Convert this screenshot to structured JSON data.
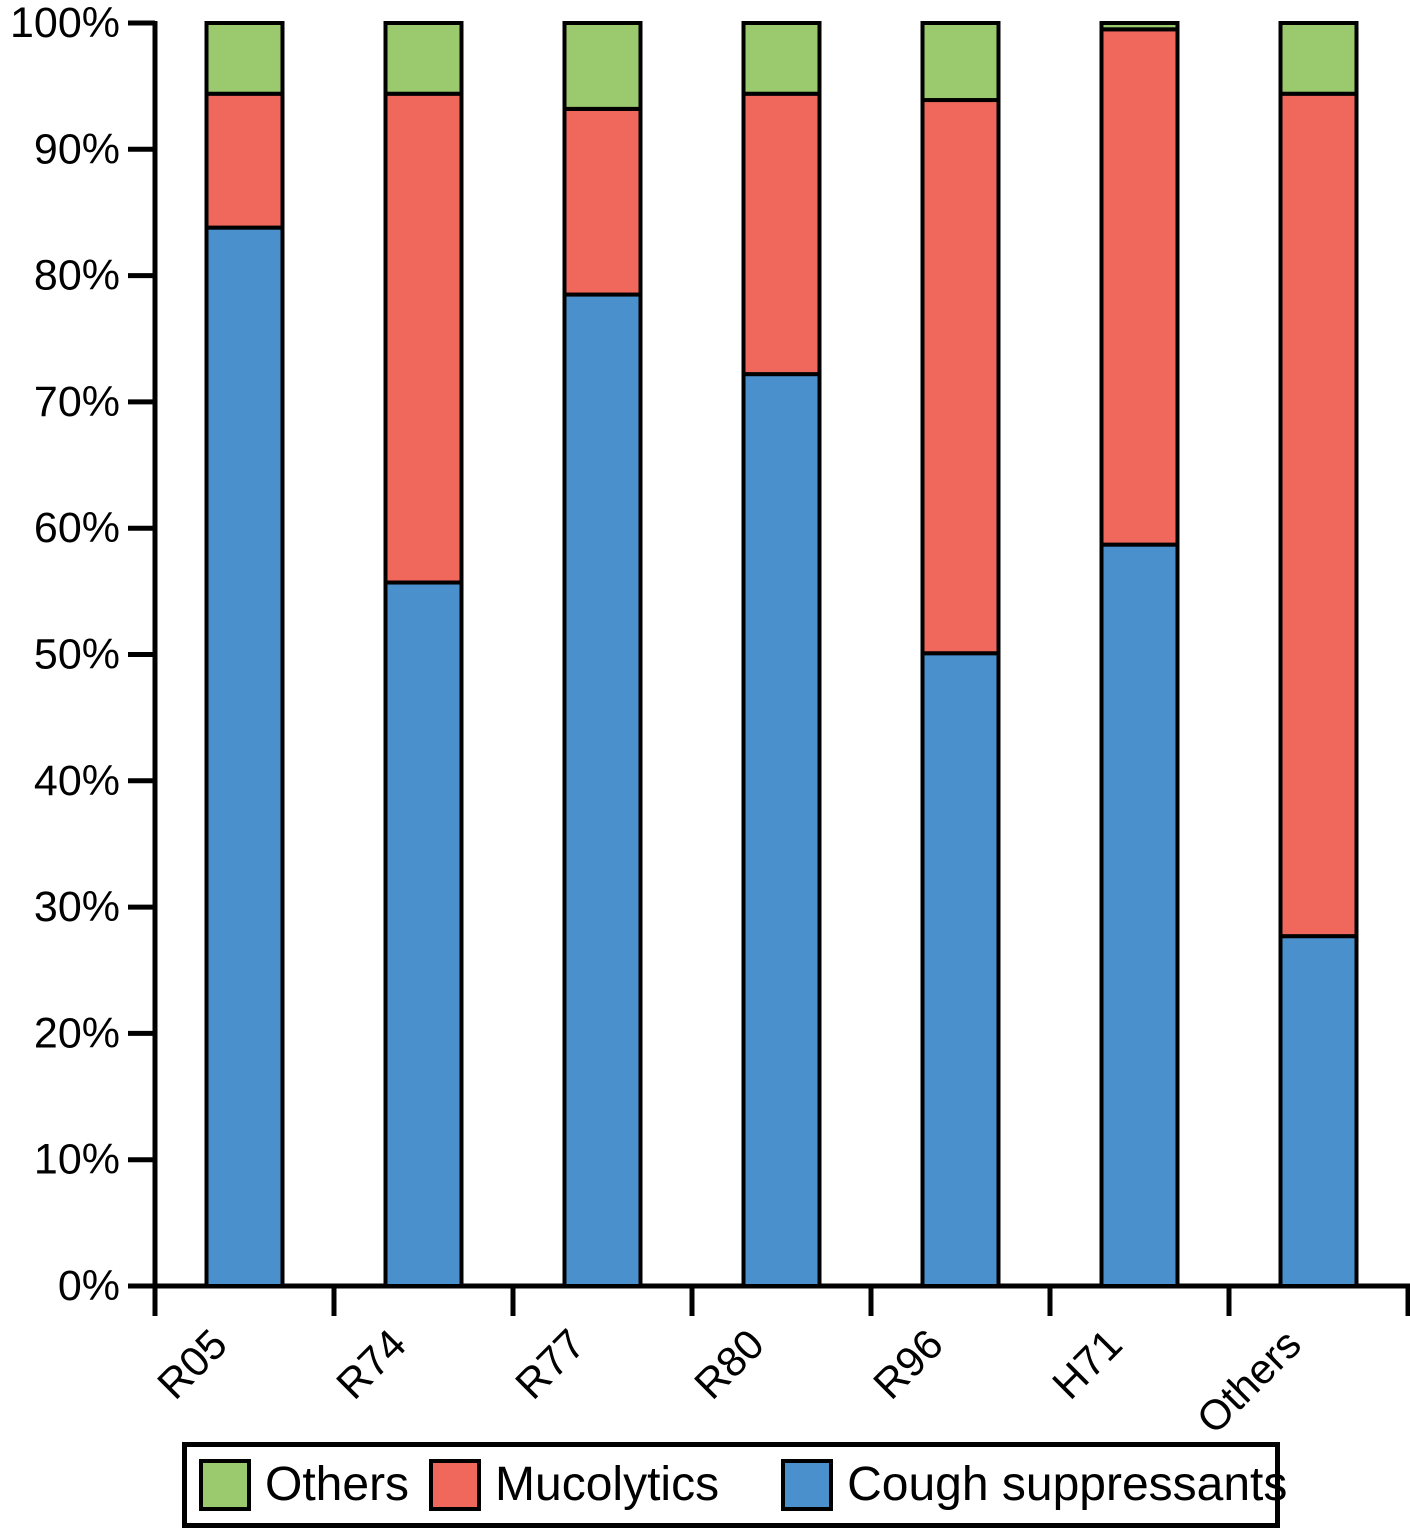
{
  "chart_data": {
    "type": "bar",
    "stacked": true,
    "orientation": "vertical",
    "title": "",
    "xlabel": "",
    "ylabel": "",
    "ylim": [
      0,
      100
    ],
    "y_unit": "%",
    "grid": false,
    "categories": [
      "R05",
      "R74",
      "R77",
      "R80",
      "R96",
      "H71",
      "Others"
    ],
    "series": [
      {
        "name": "Cough suppressants",
        "color": "#4a90cd",
        "values": [
          83.8,
          55.7,
          78.5,
          72.2,
          50.1,
          58.7,
          27.7
        ]
      },
      {
        "name": "Mucolytics",
        "color": "#f0685c",
        "values": [
          10.6,
          38.7,
          14.7,
          22.2,
          43.8,
          40.8,
          66.7
        ]
      },
      {
        "name": "Others",
        "color": "#9bc96d",
        "values": [
          5.6,
          5.6,
          6.8,
          5.6,
          6.1,
          0.5,
          5.6
        ]
      }
    ],
    "y_ticks": [
      "0%",
      "10%",
      "20%",
      "30%",
      "40%",
      "50%",
      "60%",
      "70%",
      "80%",
      "90%",
      "100%"
    ],
    "x_tick_rotation": 45,
    "legend": {
      "position": "bottom",
      "entries": [
        {
          "label": "Others",
          "series": 2
        },
        {
          "label": "Mucolytics",
          "series": 1
        },
        {
          "label": "Cough suppressants",
          "series": 0
        }
      ]
    },
    "colors": {
      "axis": "#000000",
      "background": "#ffffff"
    }
  }
}
